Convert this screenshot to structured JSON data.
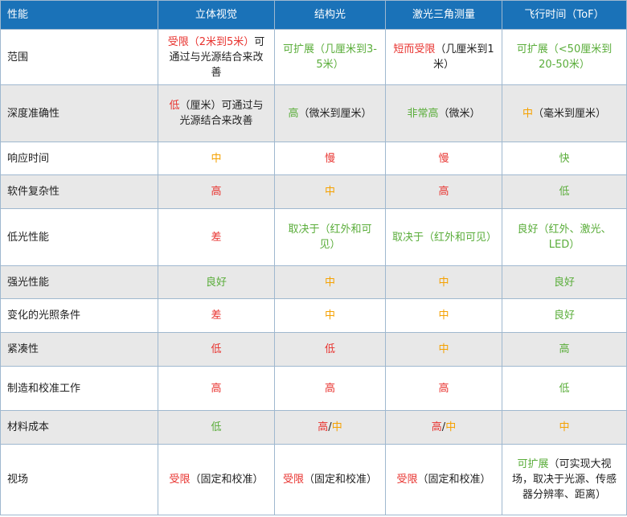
{
  "table": {
    "header": [
      "性能",
      "立体视觉",
      "结构光",
      "激光三角测量",
      "飞行时间（ToF）"
    ],
    "rows": [
      [
        "范围",
        [
          {
            "text": "受限（2米到5米）",
            "color": "#e8322e"
          },
          {
            "text": "可通过与光源结合来改善",
            "color": "#222222"
          }
        ],
        [
          {
            "text": "可扩展（几厘米到3-5米）",
            "color": "#5aad3a"
          }
        ],
        [
          {
            "text": "短而受限",
            "color": "#e8322e"
          },
          {
            "text": "（几厘米到1米）",
            "color": "#222222"
          }
        ],
        [
          {
            "text": "可扩展（<50厘米到20-50米）",
            "color": "#5aad3a"
          }
        ]
      ],
      [
        "深度准确性",
        [
          {
            "text": "低",
            "color": "#e8322e"
          },
          {
            "text": "（厘米）可通过与光源结合来改善",
            "color": "#222222"
          }
        ],
        [
          {
            "text": "高",
            "color": "#5aad3a"
          },
          {
            "text": "（微米到厘米）",
            "color": "#222222"
          }
        ],
        [
          {
            "text": "非常高",
            "color": "#5aad3a"
          },
          {
            "text": "（微米）",
            "color": "#222222"
          }
        ],
        [
          {
            "text": "中",
            "color": "#f5a100"
          },
          {
            "text": "（毫米到厘米）",
            "color": "#222222"
          }
        ]
      ],
      [
        "响应时间",
        [
          {
            "text": "中",
            "color": "#f5a100"
          }
        ],
        [
          {
            "text": "慢",
            "color": "#e8322e"
          }
        ],
        [
          {
            "text": "慢",
            "color": "#e8322e"
          }
        ],
        [
          {
            "text": "快",
            "color": "#5aad3a"
          }
        ]
      ],
      [
        "软件复杂性",
        [
          {
            "text": "高",
            "color": "#e8322e"
          }
        ],
        [
          {
            "text": "中",
            "color": "#f5a100"
          }
        ],
        [
          {
            "text": "高",
            "color": "#e8322e"
          }
        ],
        [
          {
            "text": "低",
            "color": "#5aad3a"
          }
        ]
      ],
      [
        "低光性能",
        [
          {
            "text": "差",
            "color": "#e8322e"
          }
        ],
        [
          {
            "text": "取决于（红外和可见）",
            "color": "#5aad3a"
          }
        ],
        [
          {
            "text": "取决于（红外和可见）",
            "color": "#5aad3a"
          }
        ],
        [
          {
            "text": "良好（红外、激光、LED）",
            "color": "#5aad3a"
          }
        ]
      ],
      [
        "强光性能",
        [
          {
            "text": "良好",
            "color": "#5aad3a"
          }
        ],
        [
          {
            "text": "中",
            "color": "#f5a100"
          }
        ],
        [
          {
            "text": "中",
            "color": "#f5a100"
          }
        ],
        [
          {
            "text": "良好",
            "color": "#5aad3a"
          }
        ]
      ],
      [
        "变化的光照条件",
        [
          {
            "text": "差",
            "color": "#e8322e"
          }
        ],
        [
          {
            "text": "中",
            "color": "#f5a100"
          }
        ],
        [
          {
            "text": "中",
            "color": "#f5a100"
          }
        ],
        [
          {
            "text": "良好",
            "color": "#5aad3a"
          }
        ]
      ],
      [
        "紧凑性",
        [
          {
            "text": "低",
            "color": "#e8322e"
          }
        ],
        [
          {
            "text": "低",
            "color": "#e8322e"
          }
        ],
        [
          {
            "text": "中",
            "color": "#f5a100"
          }
        ],
        [
          {
            "text": "高",
            "color": "#5aad3a"
          }
        ]
      ],
      [
        "制造和校准工作",
        [
          {
            "text": "高",
            "color": "#e8322e"
          }
        ],
        [
          {
            "text": "高",
            "color": "#e8322e"
          }
        ],
        [
          {
            "text": "高",
            "color": "#e8322e"
          }
        ],
        [
          {
            "text": "低",
            "color": "#5aad3a"
          }
        ]
      ],
      [
        "材料成本",
        [
          {
            "text": "低",
            "color": "#5aad3a"
          }
        ],
        [
          {
            "text": "高",
            "color": "#e8322e"
          },
          {
            "text": "/",
            "color": "#222222"
          },
          {
            "text": "中",
            "color": "#f5a100"
          }
        ],
        [
          {
            "text": "高",
            "color": "#e8322e"
          },
          {
            "text": "/",
            "color": "#222222"
          },
          {
            "text": "中",
            "color": "#f5a100"
          }
        ],
        [
          {
            "text": "中",
            "color": "#f5a100"
          }
        ]
      ],
      [
        "视场",
        [
          {
            "text": "受限",
            "color": "#e8322e"
          },
          {
            "text": "（固定和校准）",
            "color": "#222222"
          }
        ],
        [
          {
            "text": "受限",
            "color": "#e8322e"
          },
          {
            "text": "（固定和校准）",
            "color": "#222222"
          }
        ],
        [
          {
            "text": "受限",
            "color": "#e8322e"
          },
          {
            "text": "（固定和校准）",
            "color": "#222222"
          }
        ],
        [
          {
            "text": "可扩展",
            "color": "#5aad3a"
          },
          {
            "text": "（可实现大视场，取决于光源、传感器分辨率、距离）",
            "color": "#222222"
          }
        ]
      ]
    ]
  }
}
